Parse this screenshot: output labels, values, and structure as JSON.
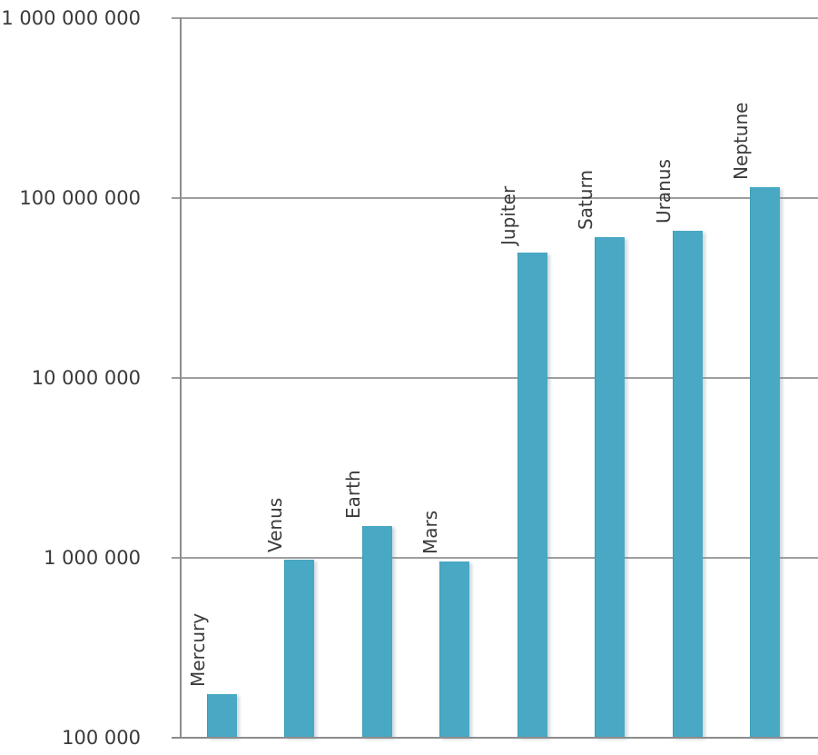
{
  "chart_data": {
    "type": "bar",
    "title": "",
    "xlabel": "",
    "ylabel": "",
    "categories": [
      "Mercury",
      "Venus",
      "Earth",
      "Mars",
      "Jupiter",
      "Saturn",
      "Uranus",
      "Neptune"
    ],
    "values": [
      175000,
      980000,
      1500000,
      960000,
      50000000,
      61000000,
      66000000,
      115000000
    ],
    "y_axis": {
      "scale": "log",
      "ylim": [
        100000,
        1000000000
      ],
      "tick_values": [
        100000,
        1000000,
        10000000,
        100000000,
        1000000000
      ],
      "tick_labels": [
        "100 000",
        "1 000 000",
        "10 000 000",
        "100 000 000",
        "1 000 000 000"
      ]
    },
    "grid": true,
    "legend": false,
    "category_label_style": "rotated-90-above-bar",
    "colors": {
      "bar_fill": "#49A8C4",
      "bar_edge": "#3E9CB8",
      "bar_shadow": "rgba(130,150,160,0.35)",
      "gridline": "#9E9E9E",
      "axis": "#8C8C8C",
      "text": "#3A3A3A",
      "background": "#FFFFFF"
    }
  }
}
